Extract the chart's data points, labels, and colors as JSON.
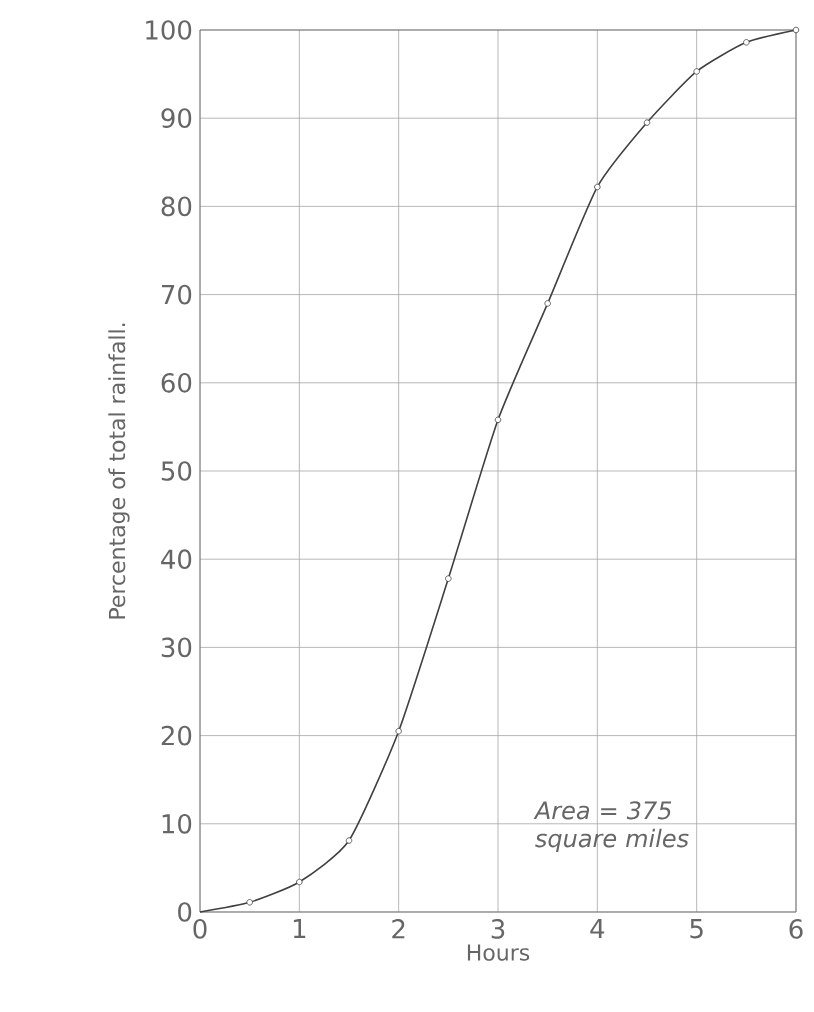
{
  "chart_data": {
    "type": "line",
    "xlabel": "Hours",
    "ylabel": "Percentage of total rainfall.",
    "xlim": [
      0,
      6
    ],
    "ylim": [
      0,
      100
    ],
    "xticks": [
      0,
      1,
      2,
      3,
      4,
      5,
      6
    ],
    "yticks": [
      0,
      10,
      20,
      30,
      40,
      50,
      60,
      70,
      80,
      90,
      100
    ],
    "grid": true,
    "series": [
      {
        "color": "#404040",
        "marker": "none",
        "x": [
          0,
          0.5,
          1,
          1.5,
          2,
          2.5,
          3,
          3.5,
          4,
          4.5,
          5,
          5.5,
          6
        ],
        "values": [
          0,
          1.1,
          3.4,
          8.1,
          20.5,
          37.8,
          55.8,
          69.0,
          82.2,
          89.5,
          95.3,
          98.6,
          100
        ]
      },
      {
        "type": "scatter",
        "color": "#404040",
        "marker": "circle",
        "x": [
          0.5,
          1,
          1.5,
          2,
          2.5,
          3,
          3.5,
          4,
          4.5,
          5,
          5.5,
          6
        ],
        "values": [
          1.1,
          3.4,
          8.1,
          20.5,
          37.8,
          55.8,
          69.0,
          82.2,
          89.5,
          95.3,
          98.6,
          100
        ]
      }
    ],
    "annotations": [
      "Area = 375 square miles"
    ]
  }
}
